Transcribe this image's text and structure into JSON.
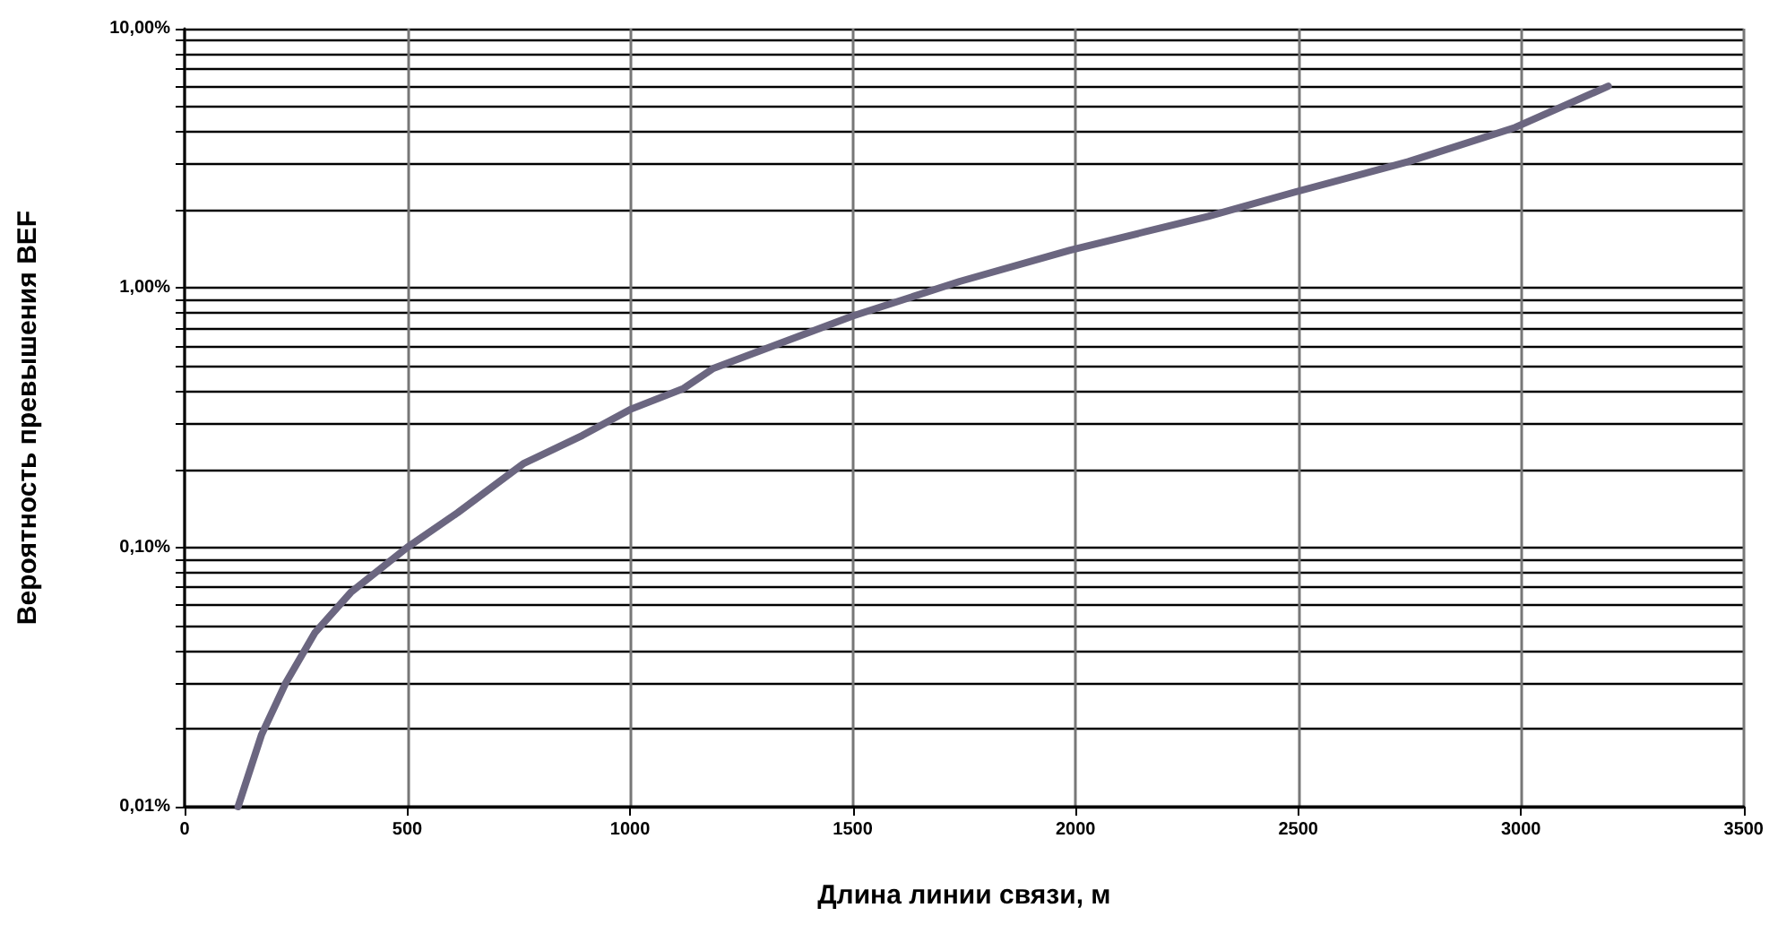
{
  "chart_data": {
    "type": "line",
    "xlabel": "Длина линии связи, м",
    "ylabel": "Вероятность превышения BEF",
    "log": "y",
    "grid": true,
    "marker": "none",
    "line_style": "solid",
    "xlim": [
      0,
      3500
    ],
    "xticks": [
      0,
      500,
      1000,
      1500,
      2000,
      2500,
      3000,
      3500
    ],
    "ylim": [
      0.01,
      10
    ],
    "yticks": [
      {
        "value": 0.01,
        "label": "0,01%"
      },
      {
        "value": 0.02,
        "label": null
      },
      {
        "value": 0.03,
        "label": null
      },
      {
        "value": 0.04,
        "label": null
      },
      {
        "value": 0.05,
        "label": null
      },
      {
        "value": 0.06,
        "label": null
      },
      {
        "value": 0.07,
        "label": null
      },
      {
        "value": 0.08,
        "label": null
      },
      {
        "value": 0.09,
        "label": null
      },
      {
        "value": 0.1,
        "label": "0,10%"
      },
      {
        "value": 0.2,
        "label": null
      },
      {
        "value": 0.3,
        "label": null
      },
      {
        "value": 0.4,
        "label": null
      },
      {
        "value": 0.5,
        "label": null
      },
      {
        "value": 0.6,
        "label": null
      },
      {
        "value": 0.7,
        "label": null
      },
      {
        "value": 0.8,
        "label": null
      },
      {
        "value": 0.9,
        "label": null
      },
      {
        "value": 1,
        "label": "1,00%"
      },
      {
        "value": 2,
        "label": null
      },
      {
        "value": 3,
        "label": null
      },
      {
        "value": 4,
        "label": null
      },
      {
        "value": 5,
        "label": null
      },
      {
        "value": 6,
        "label": null
      },
      {
        "value": 7,
        "label": null
      },
      {
        "value": 8,
        "label": null
      },
      {
        "value": 9,
        "label": null
      },
      {
        "value": 10,
        "label": "10,00%"
      }
    ],
    "x": [
      120,
      173,
      227,
      293,
      373,
      500,
      613,
      760,
      893,
      1000,
      1120,
      1187,
      1500,
      1740,
      1988,
      2298,
      2491,
      2747,
      2987,
      3196
    ],
    "series": [
      {
        "color": "#6b6680",
        "values": [
          0.01,
          0.019,
          0.03,
          0.047,
          0.067,
          0.1,
          0.136,
          0.21,
          0.27,
          0.34,
          0.41,
          0.49,
          0.78,
          1.06,
          1.4,
          1.89,
          2.34,
          3.07,
          4.16,
          6.0
        ]
      }
    ]
  }
}
